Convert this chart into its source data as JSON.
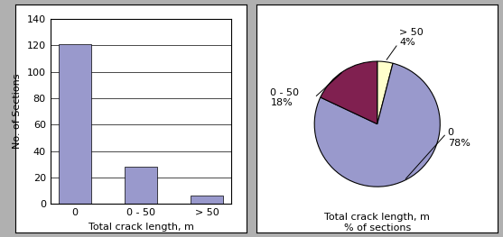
{
  "bar_categories": [
    "0",
    "0 - 50",
    "> 50"
  ],
  "bar_values": [
    121,
    28,
    6
  ],
  "bar_color": "#9999cc",
  "bar_xlabel": "Total crack length, m",
  "bar_ylabel": "No. of Sections",
  "bar_ylim": [
    0,
    140
  ],
  "bar_yticks": [
    0,
    20,
    40,
    60,
    80,
    100,
    120,
    140
  ],
  "pie_values": [
    78,
    18,
    4
  ],
  "pie_labels": [
    "0",
    "0 - 50",
    "> 50"
  ],
  "pie_colors": [
    "#9999cc",
    "#802050",
    "#ffffcc"
  ],
  "pie_xlabel": "Total crack length, m\n% of sections",
  "background_color": "#b0b0b0",
  "panel_color": "#ffffff"
}
